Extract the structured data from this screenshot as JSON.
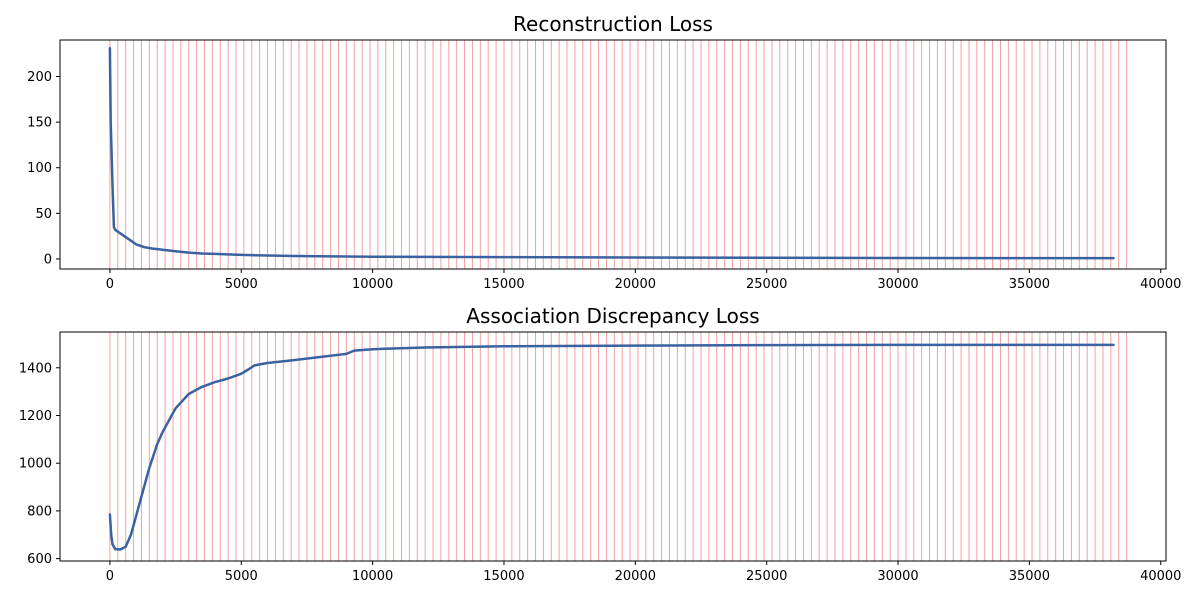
{
  "chart_data": [
    {
      "type": "line",
      "title": "Reconstruction Loss",
      "xlabel": "",
      "ylabel": "",
      "xlim": [
        -1900,
        40200
      ],
      "ylim": [
        -11,
        240
      ],
      "xticks": [
        0,
        5000,
        10000,
        15000,
        20000,
        25000,
        30000,
        35000,
        40000
      ],
      "xtick_labels": [
        "0",
        "5000",
        "10000",
        "15000",
        "20000",
        "25000",
        "30000",
        "35000",
        "40000"
      ],
      "yticks": [
        0,
        50,
        100,
        150,
        200
      ],
      "ytick_labels": [
        "0",
        "50",
        "100",
        "150",
        "200"
      ],
      "line_color": "#3a62a0",
      "vline_color": "#f08080",
      "vline_interval": 300,
      "vline_start": 0,
      "vline_end": 38900,
      "grid": false,
      "series": [
        {
          "x": [
            0,
            30,
            60,
            100,
            150,
            200,
            300,
            500,
            800,
            1000,
            1300,
            1600,
            2000,
            2500,
            3000,
            3500,
            4000,
            5000,
            6000,
            7000,
            8000,
            10000,
            15000,
            20000,
            25000,
            30000,
            35000,
            38200
          ],
          "y": [
            231,
            150,
            120,
            80,
            35,
            32,
            30,
            26,
            20,
            16,
            13,
            11.5,
            10,
            8.5,
            7,
            6,
            5.5,
            4.5,
            3.8,
            3.3,
            3,
            2.5,
            2,
            1.6,
            1.3,
            1.1,
            1,
            1
          ]
        }
      ]
    },
    {
      "type": "line",
      "title": "Association Discrepancy Loss",
      "xlabel": "",
      "ylabel": "",
      "xlim": [
        -1900,
        40200
      ],
      "ylim": [
        590,
        1550
      ],
      "xticks": [
        0,
        5000,
        10000,
        15000,
        20000,
        25000,
        30000,
        35000,
        40000
      ],
      "xtick_labels": [
        "0",
        "5000",
        "10000",
        "15000",
        "20000",
        "25000",
        "30000",
        "35000",
        "40000"
      ],
      "yticks": [
        600,
        800,
        1000,
        1200,
        1400
      ],
      "ytick_labels": [
        "600",
        "800",
        "1000",
        "1200",
        "1400"
      ],
      "line_color": "#3a62a0",
      "vline_color": "#f08080",
      "vline_interval": 300,
      "vline_start": 0,
      "vline_end": 38900,
      "grid": false,
      "series": [
        {
          "x": [
            0,
            50,
            100,
            200,
            400,
            600,
            800,
            1000,
            1200,
            1500,
            1800,
            2000,
            2500,
            3000,
            3500,
            4000,
            4500,
            5000,
            5300,
            5500,
            6000,
            7000,
            8000,
            9000,
            9300,
            10000,
            12000,
            15000,
            20000,
            25000,
            30000,
            35000,
            38200
          ],
          "y": [
            785,
            700,
            660,
            640,
            638,
            650,
            700,
            780,
            860,
            980,
            1080,
            1130,
            1230,
            1290,
            1320,
            1340,
            1355,
            1375,
            1395,
            1410,
            1420,
            1432,
            1445,
            1458,
            1472,
            1478,
            1485,
            1490,
            1493,
            1495,
            1496,
            1496,
            1496
          ]
        }
      ]
    }
  ]
}
